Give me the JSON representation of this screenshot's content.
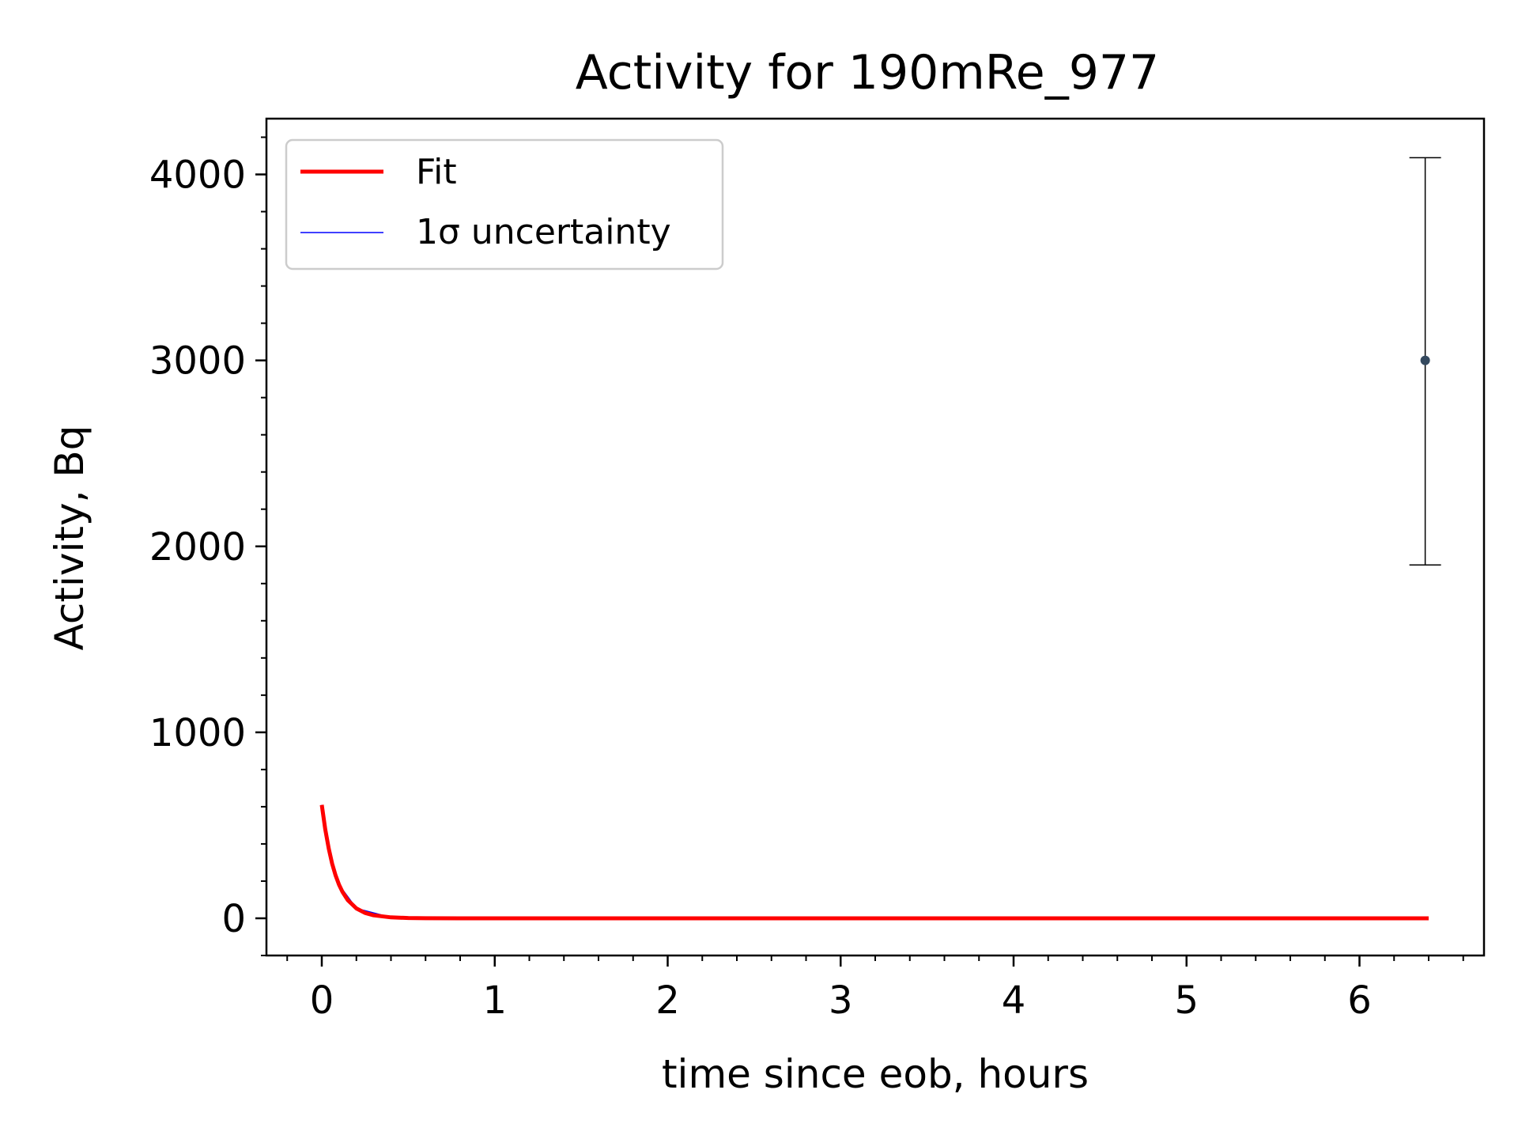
{
  "chart_data": {
    "type": "line",
    "title": "Activity for 190mRe_977",
    "xlabel": "time since eob, hours",
    "ylabel": "Activity, Bq",
    "xlim": [
      -0.32,
      6.72
    ],
    "ylim": [
      -200,
      4300
    ],
    "xticks": [
      0,
      1,
      2,
      3,
      4,
      5,
      6
    ],
    "yticks": [
      0,
      1000,
      2000,
      3000,
      4000
    ],
    "xtick_labels": [
      "0",
      "1",
      "2",
      "3",
      "4",
      "5",
      "6"
    ],
    "ytick_labels": [
      "0",
      "1000",
      "2000",
      "3000",
      "4000"
    ],
    "grid": false,
    "legend_position": "upper-left",
    "series": [
      {
        "name": "Fit",
        "kind": "line",
        "color": "#ff0000",
        "x": [
          0,
          0.02,
          0.04,
          0.06,
          0.08,
          0.1,
          0.12,
          0.15,
          0.2,
          0.25,
          0.3,
          0.4,
          0.5,
          0.6,
          0.8,
          1.0,
          2.0,
          3.0,
          4.0,
          5.0,
          6.0,
          6.4
        ],
        "y": [
          610,
          478,
          375,
          294,
          230,
          180,
          141,
          98,
          53,
          29,
          16,
          5,
          1.4,
          0.4,
          0,
          0,
          0,
          0,
          0,
          0,
          0,
          0
        ]
      },
      {
        "name": "1σ uncertainty",
        "kind": "band",
        "color": "#0000ff",
        "x": [
          0,
          0.05,
          0.1,
          0.2,
          0.4,
          1.0,
          6.4
        ],
        "y": [
          610,
          330,
          180,
          53,
          5,
          0,
          0
        ]
      }
    ],
    "points": [
      {
        "x": 6.38,
        "y": 3000,
        "yerr_low": 1900,
        "yerr_high": 4090,
        "color": "#34495e"
      }
    ]
  }
}
